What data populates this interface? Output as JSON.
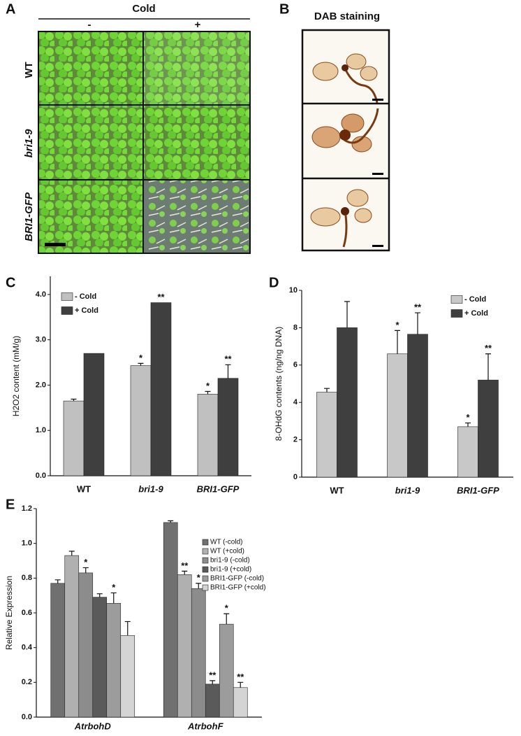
{
  "panel_a": {
    "label": "A",
    "header": "Cold",
    "columns": [
      "-",
      "+"
    ],
    "rows": [
      "WT",
      "bri1-9",
      "BRI1-GFP"
    ]
  },
  "panel_b": {
    "label": "B",
    "title": "DAB staining"
  },
  "chart_data": [
    {
      "label": "C",
      "type": "bar",
      "y_label": "H2O2 content (mM/g)",
      "categories": [
        "WT",
        "bri1-9",
        "BRI1-GFP"
      ],
      "series": [
        {
          "name": "- Cold",
          "color": "#c0c0c0",
          "values": [
            1.65,
            2.43,
            1.8
          ],
          "errors": [
            0.04,
            0.05,
            0.06
          ],
          "significance": [
            null,
            "*",
            "*"
          ]
        },
        {
          "name": "+ Cold",
          "color": "#3f3f3f",
          "values": [
            2.7,
            3.82,
            2.15
          ],
          "errors": [
            null,
            null,
            0.3
          ],
          "significance": [
            null,
            "**",
            "**"
          ]
        }
      ],
      "ylim": [
        0,
        4.4
      ],
      "yticks": [
        {
          "value": 0,
          "label": "0.0"
        },
        {
          "value": 1,
          "label": "1.0"
        },
        {
          "value": 2,
          "label": "2.0"
        },
        {
          "value": 3,
          "label": "3.0"
        },
        {
          "value": 4,
          "label": "4.0"
        }
      ]
    },
    {
      "label": "D",
      "type": "bar",
      "y_label": "8-OHdG contents (ng/ng DNA)",
      "categories": [
        "WT",
        "bri1-9",
        "BRI1-GFP"
      ],
      "series": [
        {
          "name": "- Cold",
          "color": "#c8c8c8",
          "values": [
            4.55,
            6.6,
            2.7
          ],
          "errors": [
            0.2,
            1.25,
            0.2
          ],
          "significance": [
            null,
            "*",
            "*"
          ]
        },
        {
          "name": "+ Cold",
          "color": "#3f3f3f",
          "values": [
            8.0,
            7.65,
            5.2
          ],
          "errors": [
            1.4,
            1.15,
            1.4
          ],
          "significance": [
            null,
            "**",
            "**"
          ]
        }
      ],
      "ylim": [
        0,
        10
      ],
      "yticks": [
        0,
        2,
        4,
        6,
        8,
        10
      ]
    },
    {
      "label": "E",
      "type": "bar",
      "y_label": "Relative Expression",
      "categories": [
        "AtrbohD",
        "AtrbohF"
      ],
      "series": [
        {
          "name": "WT (-cold)",
          "color": "#707070",
          "values": [
            0.77,
            1.12
          ],
          "errors": [
            0.02,
            0.01
          ],
          "significance": [
            null,
            null
          ]
        },
        {
          "name": "WT (+cold)",
          "color": "#b0b0b0",
          "values": [
            0.93,
            0.82
          ],
          "errors": [
            0.025,
            0.02
          ],
          "significance": [
            null,
            "**"
          ]
        },
        {
          "name": "bri1-9 (-cold)",
          "color": "#8c8c8c",
          "values": [
            0.83,
            0.74
          ],
          "errors": [
            0.03,
            0.03
          ],
          "significance": [
            "*",
            "*"
          ]
        },
        {
          "name": "bri1-9 (+cold)",
          "color": "#5a5a5a",
          "values": [
            0.69,
            0.19
          ],
          "errors": [
            0.02,
            0.02
          ],
          "significance": [
            null,
            "**"
          ]
        },
        {
          "name": "BRI1-GFP (-cold)",
          "color": "#9c9c9c",
          "values": [
            0.655,
            0.535
          ],
          "errors": [
            0.06,
            0.06
          ],
          "significance": [
            "*",
            "*"
          ]
        },
        {
          "name": "BRI1-GFP (+cold)",
          "color": "#d4d4d4",
          "values": [
            0.47,
            0.17
          ],
          "errors": [
            0.08,
            0.03
          ],
          "significance": [
            null,
            "**"
          ]
        }
      ],
      "ylim": [
        0,
        1.2
      ],
      "yticks": [
        {
          "value": 0,
          "label": "0.0"
        },
        {
          "value": 0.2,
          "label": "0.2"
        },
        {
          "value": 0.4,
          "label": "0.4"
        },
        {
          "value": 0.6,
          "label": "0.6"
        },
        {
          "value": 0.8,
          "label": "0.8"
        },
        {
          "value": 1,
          "label": "1.0"
        },
        {
          "value": 1.2,
          "label": "1.2"
        }
      ]
    }
  ]
}
